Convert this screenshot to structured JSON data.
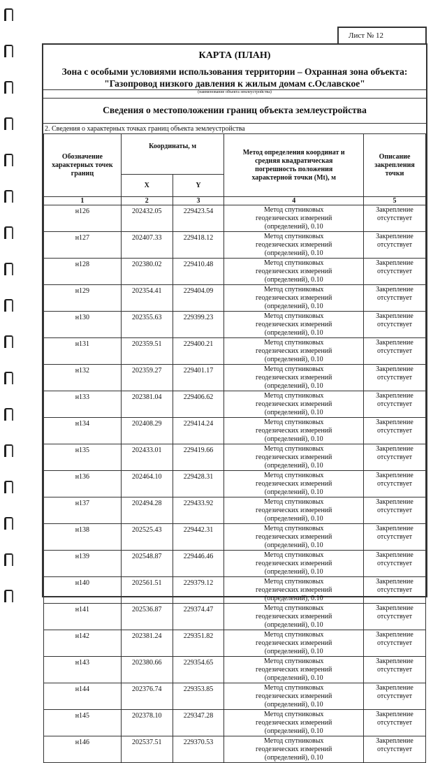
{
  "sheet_label": "Лист № 12",
  "title": "КАРТА (ПЛАН)",
  "zone_line": "Зона с особыми условиями использования территории – Охранная зона объекта:",
  "object_name": "\"Газопровод низкого давления к жилым домам с.Ославское\"",
  "object_caption": "(наименование объекта землеустройства)",
  "section_title": "Сведения о местоположении границ объекта землеустройства",
  "subsection": "2. Сведения о характерных точках границ объекта землеустройства",
  "table": {
    "headers": {
      "point": "Обозначение характерных точек границ",
      "coords": "Координаты, м",
      "x": "X",
      "y": "Y",
      "method": "Метод определения координат и средняя квадратическая погрешность положения характерной точки (Mt), м",
      "description": "Описание закрепления точки"
    },
    "column_numbers": [
      "1",
      "2",
      "3",
      "4",
      "5"
    ],
    "rows": [
      {
        "point": "н126",
        "x": "202432.05",
        "y": "229423.54",
        "method": "Метод спутниковых геодезических измерений (определений), 0.10",
        "description": "Закрепление отсутствует"
      },
      {
        "point": "н127",
        "x": "202407.33",
        "y": "229418.12",
        "method": "Метод спутниковых геодезических измерений (определений), 0.10",
        "description": "Закрепление отсутствует"
      },
      {
        "point": "н128",
        "x": "202380.02",
        "y": "229410.48",
        "method": "Метод спутниковых геодезических измерений (определений), 0.10",
        "description": "Закрепление отсутствует"
      },
      {
        "point": "н129",
        "x": "202354.41",
        "y": "229404.09",
        "method": "Метод спутниковых геодезических измерений (определений), 0.10",
        "description": "Закрепление отсутствует"
      },
      {
        "point": "н130",
        "x": "202355.63",
        "y": "229399.23",
        "method": "Метод спутниковых геодезических измерений (определений), 0.10",
        "description": "Закрепление отсутствует"
      },
      {
        "point": "н131",
        "x": "202359.51",
        "y": "229400.21",
        "method": "Метод спутниковых геодезических измерений (определений), 0.10",
        "description": "Закрепление отсутствует"
      },
      {
        "point": "н132",
        "x": "202359.27",
        "y": "229401.17",
        "method": "Метод спутниковых геодезических измерений (определений), 0.10",
        "description": "Закрепление отсутствует"
      },
      {
        "point": "н133",
        "x": "202381.04",
        "y": "229406.62",
        "method": "Метод спутниковых геодезических измерений (определений), 0.10",
        "description": "Закрепление отсутствует"
      },
      {
        "point": "н134",
        "x": "202408.29",
        "y": "229414.24",
        "method": "Метод спутниковых геодезических измерений (определений), 0.10",
        "description": "Закрепление отсутствует"
      },
      {
        "point": "н135",
        "x": "202433.01",
        "y": "229419.66",
        "method": "Метод спутниковых геодезических измерений (определений), 0.10",
        "description": "Закрепление отсутствует"
      },
      {
        "point": "н136",
        "x": "202464.10",
        "y": "229428.31",
        "method": "Метод спутниковых геодезических измерений (определений), 0.10",
        "description": "Закрепление отсутствует"
      },
      {
        "point": "н137",
        "x": "202494.28",
        "y": "229433.92",
        "method": "Метод спутниковых геодезических измерений (определений), 0.10",
        "description": "Закрепление отсутствует"
      },
      {
        "point": "н138",
        "x": "202525.43",
        "y": "229442.31",
        "method": "Метод спутниковых геодезических измерений (определений), 0.10",
        "description": "Закрепление отсутствует"
      },
      {
        "point": "н139",
        "x": "202548.87",
        "y": "229446.46",
        "method": "Метод спутниковых геодезических измерений (определений), 0.10",
        "description": "Закрепление отсутствует"
      },
      {
        "point": "н140",
        "x": "202561.51",
        "y": "229379.12",
        "method": "Метод спутниковых геодезических измерений (определений), 0.10",
        "description": "Закрепление отсутствует"
      },
      {
        "point": "н141",
        "x": "202536.87",
        "y": "229374.47",
        "method": "Метод спутниковых геодезических измерений (определений), 0.10",
        "description": "Закрепление отсутствует"
      },
      {
        "point": "н142",
        "x": "202381.24",
        "y": "229351.82",
        "method": "Метод спутниковых геодезических измерений (определений), 0.10",
        "description": "Закрепление отсутствует"
      },
      {
        "point": "н143",
        "x": "202380.66",
        "y": "229354.65",
        "method": "Метод спутниковых геодезических измерений (определений), 0.10",
        "description": "Закрепление отсутствует"
      },
      {
        "point": "н144",
        "x": "202376.74",
        "y": "229353.85",
        "method": "Метод спутниковых геодезических измерений (определений), 0.10",
        "description": "Закрепление отсутствует"
      },
      {
        "point": "н145",
        "x": "202378.10",
        "y": "229347.28",
        "method": "Метод спутниковых геодезических измерений (определений), 0.10",
        "description": "Закрепление отсутствует"
      },
      {
        "point": "н146",
        "x": "202537.51",
        "y": "229370.53",
        "method": "Метод спутниковых геодезических измерений (определений), 0.10",
        "description": "Закрепление отсутствует"
      }
    ]
  }
}
